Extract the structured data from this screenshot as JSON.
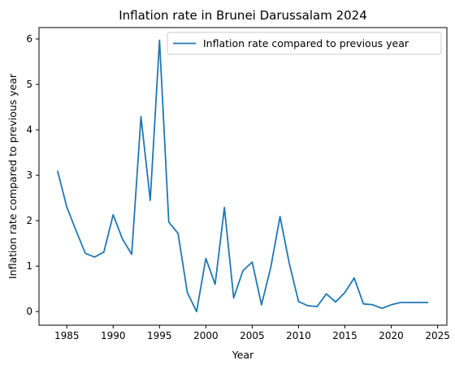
{
  "chart_data": {
    "type": "line",
    "title": "Inflation rate in Brunei Darussalam 2024",
    "xlabel": "Year",
    "ylabel": "Inflation rate compared to previous year",
    "xlim": [
      1982,
      2026
    ],
    "ylim": [
      -0.3,
      6.25
    ],
    "xticks": [
      1985,
      1990,
      1995,
      2000,
      2005,
      2010,
      2015,
      2020,
      2025
    ],
    "yticks": [
      0,
      1,
      2,
      3,
      4,
      5,
      6
    ],
    "grid": false,
    "legend_position": "top-right",
    "colors": {
      "series": "#1f77b4"
    },
    "series": [
      {
        "name": "Inflation rate compared to previous year",
        "x": [
          1984,
          1985,
          1986,
          1987,
          1988,
          1989,
          1990,
          1991,
          1992,
          1993,
          1994,
          1995,
          1996,
          1997,
          1998,
          1999,
          2000,
          2001,
          2002,
          2003,
          2004,
          2005,
          2006,
          2007,
          2008,
          2009,
          2010,
          2011,
          2012,
          2013,
          2014,
          2015,
          2016,
          2017,
          2018,
          2019,
          2020,
          2021,
          2022,
          2023,
          2024
        ],
        "values": [
          3.1,
          2.3,
          1.78,
          1.28,
          1.2,
          1.31,
          2.13,
          1.6,
          1.26,
          4.29,
          2.45,
          5.97,
          1.97,
          1.72,
          0.42,
          0.0,
          1.17,
          0.6,
          2.29,
          0.3,
          0.9,
          1.09,
          0.15,
          0.97,
          2.09,
          1.06,
          0.22,
          0.13,
          0.11,
          0.39,
          0.21,
          0.42,
          0.74,
          0.17,
          0.15,
          0.07,
          0.15,
          0.2,
          0.2,
          0.2,
          0.2
        ]
      }
    ]
  }
}
